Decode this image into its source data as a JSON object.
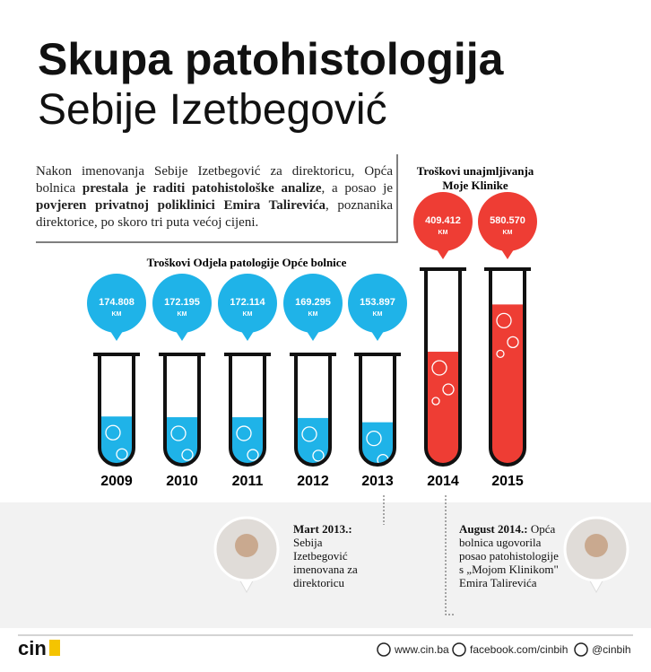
{
  "chart_data": {
    "type": "tube",
    "title": "Skupa patohistologija",
    "subtitle": "Sebije Izetbegović",
    "intro": [
      {
        "text": "Nakon imenovanja Sebije Izetbegović za direktoricu, Opća bolnica ",
        "bold": false
      },
      {
        "text": "prestala je raditi patohistološke analize",
        "bold": true
      },
      {
        "text": ", a posao je ",
        "bold": false
      },
      {
        "text": "povjeren privatnoj poliklinici Emira Talirevića",
        "bold": true
      },
      {
        "text": ", poznanika direktorice, po skoro tri puta većoj cijeni.",
        "bold": false
      }
    ],
    "categories": [
      "2009",
      "2010",
      "2011",
      "2012",
      "2013",
      "2014",
      "2015"
    ],
    "unit": "KM",
    "ylim": [
      0,
      650000
    ],
    "series": [
      {
        "name": "Troškovi Odjela patologije Opće bolnice",
        "color": "#1fb3e8",
        "values": [
          174808,
          172195,
          172114,
          169295,
          153897,
          null,
          null
        ],
        "value_labels": [
          "174.808",
          "172.195",
          "172.114",
          "169.295",
          "153.897",
          null,
          null
        ]
      },
      {
        "name": "Troškovi unajmljivanja Moje Klinike",
        "color": "#ee3d34",
        "values": [
          null,
          null,
          null,
          null,
          null,
          409412,
          580570
        ],
        "value_labels": [
          null,
          null,
          null,
          null,
          null,
          "409.412",
          "580.570"
        ]
      }
    ],
    "annotations": [
      {
        "date": "Mart 2013.:",
        "lines": [
          "Sebija",
          "Izetbegović",
          "imenovana za",
          "direktoricu"
        ]
      },
      {
        "date": "August 2014.:",
        "lines": [
          " Opća",
          "bolnica ugovorila",
          "posao patohistologije",
          "s „Mojom Klinikom\"",
          "Emira Talirevića"
        ]
      }
    ],
    "footer": {
      "logo": "cin",
      "web": "www.cin.ba",
      "facebook": "facebook.com/cinbih",
      "twitter": "@cinbih"
    }
  }
}
